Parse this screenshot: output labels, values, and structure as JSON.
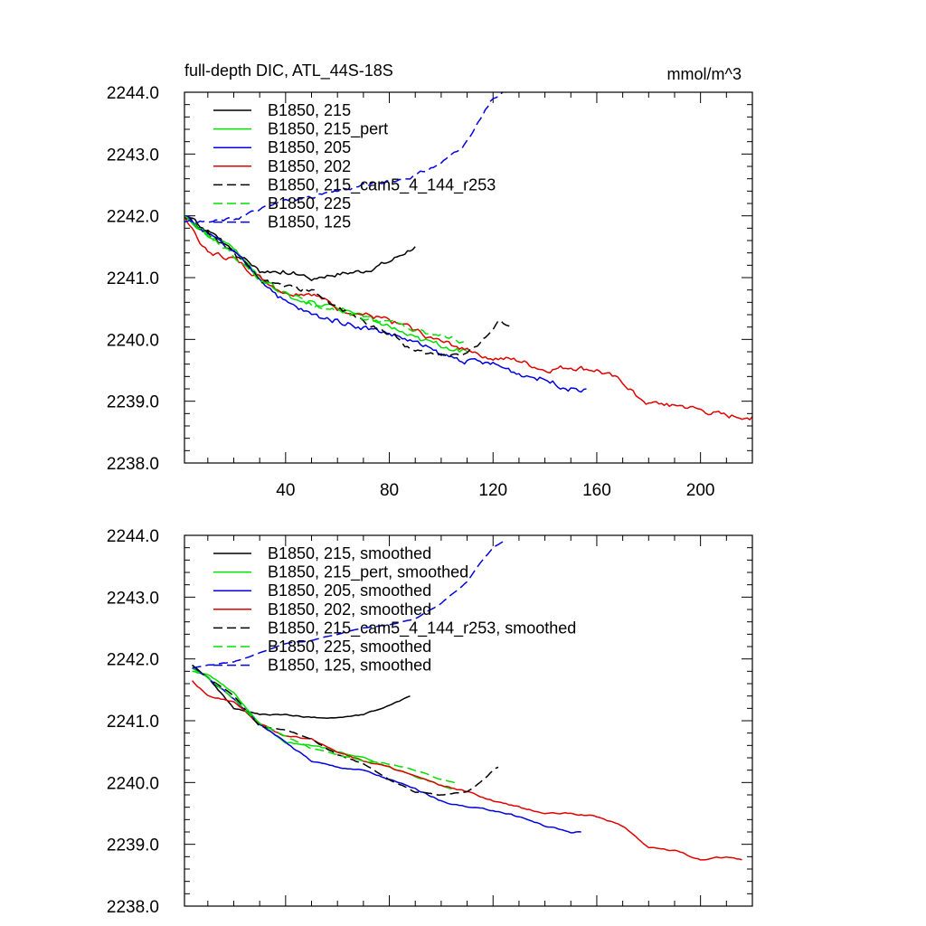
{
  "colors": {
    "black": "#000000",
    "green": "#00e000",
    "blue": "#0000e0",
    "red": "#e00000"
  },
  "chart_data": [
    {
      "type": "line",
      "title": "full-depth DIC, ATL_44S-18S",
      "units": "mmol/m^3",
      "xlim": [
        1,
        220
      ],
      "ylim": [
        2238.0,
        2244.0
      ],
      "x_ticks": [
        40,
        80,
        120,
        160,
        200
      ],
      "x_tick_labels": [
        "40",
        "80",
        "120",
        "160",
        "200"
      ],
      "y_ticks": [
        2238.0,
        2239.0,
        2240.0,
        2241.0,
        2242.0,
        2243.0,
        2244.0
      ],
      "y_tick_labels": [
        "2238.0",
        "2239.0",
        "2240.0",
        "2241.0",
        "2242.0",
        "2243.0",
        "2244.0"
      ],
      "legend_position": "top-left",
      "series": [
        {
          "name": "B1850, 215",
          "color": "black",
          "dash": "solid",
          "noise": 0.07,
          "x": [
            1,
            10,
            20,
            30,
            40,
            50,
            60,
            70,
            80,
            90
          ],
          "y": [
            2242.0,
            2241.75,
            2241.45,
            2241.1,
            2241.1,
            2241.0,
            2241.05,
            2241.1,
            2241.25,
            2241.5
          ]
        },
        {
          "name": "B1850, 215_pert",
          "color": "green",
          "dash": "solid",
          "noise": 0.08,
          "x": [
            1,
            10,
            20,
            30,
            40,
            50,
            60,
            70,
            80,
            90,
            100,
            110
          ],
          "y": [
            2242.0,
            2241.7,
            2241.5,
            2241.0,
            2240.7,
            2240.6,
            2240.5,
            2240.4,
            2240.2,
            2240.0,
            2239.9,
            2239.8
          ]
        },
        {
          "name": "B1850, 205",
          "color": "blue",
          "dash": "solid",
          "noise": 0.08,
          "x": [
            1,
            10,
            20,
            30,
            40,
            50,
            60,
            70,
            80,
            90,
            100,
            110,
            120,
            130,
            140,
            150,
            156
          ],
          "y": [
            2242.0,
            2241.7,
            2241.4,
            2241.0,
            2240.6,
            2240.4,
            2240.3,
            2240.2,
            2240.1,
            2239.95,
            2239.75,
            2239.65,
            2239.6,
            2239.45,
            2239.35,
            2239.2,
            2239.2
          ]
        },
        {
          "name": "B1850, 202",
          "color": "red",
          "dash": "solid",
          "noise": 0.08,
          "x": [
            1,
            10,
            20,
            30,
            40,
            50,
            60,
            70,
            80,
            90,
            100,
            110,
            120,
            130,
            140,
            150,
            160,
            170,
            180,
            190,
            200,
            210,
            220
          ],
          "y": [
            2242.0,
            2241.4,
            2241.3,
            2241.0,
            2240.75,
            2240.75,
            2240.5,
            2240.4,
            2240.3,
            2240.15,
            2239.95,
            2239.85,
            2239.7,
            2239.65,
            2239.5,
            2239.55,
            2239.5,
            2239.3,
            2238.95,
            2238.95,
            2238.85,
            2238.75,
            2238.75
          ]
        },
        {
          "name": "B1850, 215_cam5_4_144_r253",
          "color": "black",
          "dash": "dashed",
          "noise": 0.07,
          "x": [
            1,
            10,
            20,
            30,
            40,
            50,
            60,
            70,
            80,
            90,
            100,
            110,
            115,
            120,
            123,
            127
          ],
          "y": [
            2242.0,
            2241.7,
            2241.4,
            2240.95,
            2240.85,
            2240.8,
            2240.5,
            2240.3,
            2240.1,
            2239.8,
            2239.75,
            2239.8,
            2239.95,
            2240.15,
            2240.3,
            2240.2
          ]
        },
        {
          "name": "B1850, 225",
          "color": "green",
          "dash": "dashed",
          "noise": 0.07,
          "x": [
            1,
            10,
            20,
            30,
            40,
            50,
            60,
            70,
            80,
            90,
            100,
            110
          ],
          "y": [
            2242.0,
            2241.7,
            2241.35,
            2240.95,
            2240.75,
            2240.55,
            2240.45,
            2240.35,
            2240.3,
            2240.15,
            2240.05,
            2239.95
          ]
        },
        {
          "name": "B1850, 125",
          "color": "blue",
          "dash": "dashed",
          "noise": 0.05,
          "x": [
            1,
            10,
            20,
            30,
            40,
            50,
            60,
            70,
            80,
            90,
            100,
            110,
            115,
            120,
            125
          ],
          "y": [
            2241.9,
            2241.9,
            2241.95,
            2242.1,
            2242.25,
            2242.3,
            2242.4,
            2242.5,
            2242.55,
            2242.65,
            2242.85,
            2243.2,
            2243.55,
            2243.9,
            2244.0
          ]
        }
      ]
    },
    {
      "type": "line",
      "xlim": [
        1,
        220
      ],
      "ylim": [
        2238.0,
        2244.0
      ],
      "x_ticks": [
        40,
        80,
        120,
        160,
        200
      ],
      "y_ticks": [
        2238.0,
        2239.0,
        2240.0,
        2241.0,
        2242.0,
        2243.0,
        2244.0
      ],
      "y_tick_labels": [
        "2238.0",
        "2239.0",
        "2240.0",
        "2241.0",
        "2242.0",
        "2243.0",
        "2244.0"
      ],
      "legend_position": "top-left",
      "series": [
        {
          "name": "B1850, 215, smoothed",
          "color": "black",
          "dash": "solid",
          "noise": 0.015,
          "x": [
            4,
            10,
            20,
            30,
            40,
            50,
            60,
            70,
            80,
            88
          ],
          "y": [
            2241.9,
            2241.7,
            2241.2,
            2241.1,
            2241.1,
            2241.05,
            2241.05,
            2241.1,
            2241.25,
            2241.4
          ]
        },
        {
          "name": "B1850, 215_pert, smoothed",
          "color": "green",
          "dash": "solid",
          "noise": 0.02,
          "x": [
            4,
            10,
            20,
            30,
            40,
            50,
            60,
            70,
            80,
            90,
            100,
            104
          ],
          "y": [
            2241.8,
            2241.75,
            2241.45,
            2240.95,
            2240.65,
            2240.6,
            2240.5,
            2240.4,
            2240.25,
            2240.1,
            2239.95,
            2239.9
          ]
        },
        {
          "name": "B1850, 205, smoothed",
          "color": "blue",
          "dash": "solid",
          "noise": 0.02,
          "x": [
            4,
            10,
            20,
            30,
            40,
            50,
            60,
            70,
            80,
            90,
            100,
            110,
            120,
            130,
            140,
            150,
            154
          ],
          "y": [
            2241.85,
            2241.7,
            2241.35,
            2240.95,
            2240.65,
            2240.35,
            2240.25,
            2240.2,
            2240.05,
            2239.9,
            2239.7,
            2239.6,
            2239.55,
            2239.45,
            2239.3,
            2239.2,
            2239.2
          ]
        },
        {
          "name": "B1850, 202, smoothed",
          "color": "red",
          "dash": "solid",
          "noise": 0.02,
          "x": [
            4,
            10,
            20,
            30,
            40,
            50,
            60,
            70,
            80,
            90,
            100,
            110,
            120,
            130,
            140,
            150,
            160,
            170,
            180,
            190,
            200,
            210,
            216
          ],
          "y": [
            2241.65,
            2241.4,
            2241.3,
            2240.95,
            2240.75,
            2240.7,
            2240.5,
            2240.35,
            2240.25,
            2240.1,
            2239.95,
            2239.85,
            2239.7,
            2239.6,
            2239.5,
            2239.5,
            2239.45,
            2239.3,
            2238.95,
            2238.9,
            2238.75,
            2238.8,
            2238.75
          ]
        },
        {
          "name": "B1850, 215_cam5_4_144_r253, smoothed",
          "color": "black",
          "dash": "dashed",
          "noise": 0.015,
          "x": [
            4,
            10,
            20,
            30,
            40,
            50,
            60,
            70,
            80,
            90,
            100,
            110,
            115,
            120,
            122
          ],
          "y": [
            2241.9,
            2241.7,
            2241.4,
            2240.9,
            2240.85,
            2240.7,
            2240.45,
            2240.3,
            2240.05,
            2239.85,
            2239.8,
            2239.85,
            2240.0,
            2240.2,
            2240.25
          ]
        },
        {
          "name": "B1850, 225, smoothed",
          "color": "green",
          "dash": "dashed",
          "noise": 0.015,
          "x": [
            4,
            10,
            20,
            30,
            40,
            50,
            60,
            70,
            80,
            90,
            100,
            106
          ],
          "y": [
            2241.85,
            2241.7,
            2241.35,
            2240.95,
            2240.75,
            2240.55,
            2240.45,
            2240.35,
            2240.3,
            2240.2,
            2240.05,
            2240.0
          ]
        },
        {
          "name": "B1850, 125, smoothed",
          "color": "blue",
          "dash": "dashed",
          "noise": 0.01,
          "x": [
            4,
            10,
            20,
            30,
            40,
            50,
            60,
            70,
            80,
            90,
            100,
            110,
            115,
            120,
            124
          ],
          "y": [
            2241.85,
            2241.9,
            2241.95,
            2242.1,
            2242.25,
            2242.3,
            2242.4,
            2242.5,
            2242.55,
            2242.65,
            2242.9,
            2243.25,
            2243.55,
            2243.8,
            2243.9
          ]
        }
      ]
    }
  ]
}
